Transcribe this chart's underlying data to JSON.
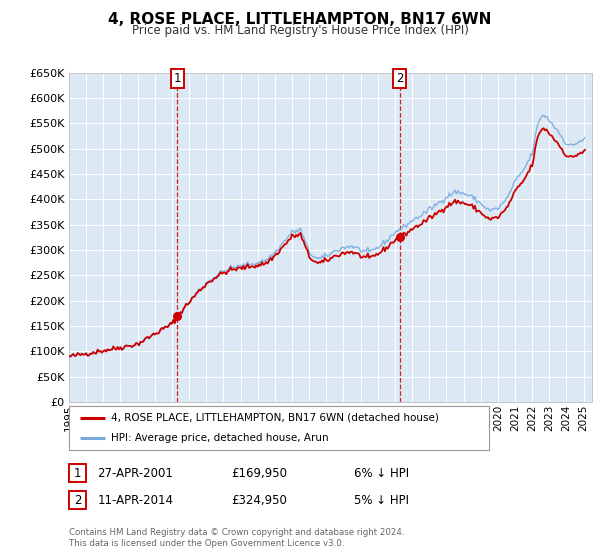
{
  "title": "4, ROSE PLACE, LITTLEHAMPTON, BN17 6WN",
  "subtitle": "Price paid vs. HM Land Registry's House Price Index (HPI)",
  "red_line_label": "4, ROSE PLACE, LITTLEHAMPTON, BN17 6WN (detached house)",
  "blue_line_label": "HPI: Average price, detached house, Arun",
  "annotation1_label": "1",
  "annotation1_date": "27-APR-2001",
  "annotation1_price": "£169,950",
  "annotation1_hpi": "6% ↓ HPI",
  "annotation2_label": "2",
  "annotation2_date": "11-APR-2014",
  "annotation2_price": "£324,950",
  "annotation2_hpi": "5% ↓ HPI",
  "footnote1": "Contains HM Land Registry data © Crown copyright and database right 2024.",
  "footnote2": "This data is licensed under the Open Government Licence v3.0.",
  "xmin": 1995.0,
  "xmax": 2025.5,
  "ymin": 0,
  "ymax": 650000,
  "background_color": "#dce9f5",
  "red_color": "#cc0000",
  "blue_color": "#7aaadd",
  "marker1_x": 2001.31,
  "marker1_y": 169950,
  "marker2_x": 2014.28,
  "marker2_y": 324950,
  "vline1_x": 2001.31,
  "vline2_x": 2014.28,
  "yticks": [
    0,
    50000,
    100000,
    150000,
    200000,
    250000,
    300000,
    350000,
    400000,
    450000,
    500000,
    550000,
    600000,
    650000
  ]
}
